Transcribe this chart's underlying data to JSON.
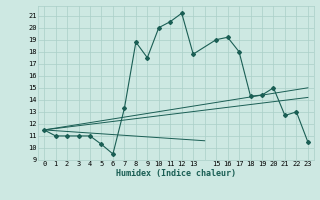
{
  "xlabel": "Humidex (Indice chaleur)",
  "bg_color": "#cde8e2",
  "grid_color": "#aacfc8",
  "line_color": "#1a5e54",
  "xlim": [
    -0.5,
    23.5
  ],
  "ylim": [
    9,
    21.8
  ],
  "yticks": [
    9,
    10,
    11,
    12,
    13,
    14,
    15,
    16,
    17,
    18,
    19,
    20,
    21
  ],
  "xticks": [
    0,
    1,
    2,
    3,
    4,
    5,
    6,
    7,
    8,
    9,
    10,
    11,
    12,
    13,
    14,
    15,
    16,
    17,
    18,
    19,
    20,
    21,
    22,
    23
  ],
  "xtick_labels": [
    "0",
    "1",
    "2",
    "3",
    "4",
    "5",
    "6",
    "7",
    "8",
    "9",
    "10",
    "11",
    "12",
    "13",
    "",
    "15",
    "16",
    "17",
    "18",
    "19",
    "20",
    "21",
    "22",
    "23"
  ],
  "main_x": [
    0,
    1,
    2,
    3,
    4,
    5,
    6,
    7,
    8,
    9,
    10,
    11,
    12,
    13,
    15,
    16,
    17,
    18,
    19,
    20,
    21,
    22,
    23
  ],
  "main_y": [
    11.5,
    11.0,
    11.0,
    11.0,
    11.0,
    10.3,
    9.5,
    13.3,
    18.8,
    17.5,
    20.0,
    20.5,
    21.2,
    17.8,
    19.0,
    19.2,
    18.0,
    14.3,
    14.4,
    15.0,
    12.7,
    13.0,
    10.5
  ],
  "trend1_x": [
    0,
    23
  ],
  "trend1_y": [
    11.5,
    15.0
  ],
  "trend2_x": [
    0,
    23
  ],
  "trend2_y": [
    11.5,
    14.2
  ],
  "trend3_x": [
    0,
    14
  ],
  "trend3_y": [
    11.5,
    10.6
  ]
}
